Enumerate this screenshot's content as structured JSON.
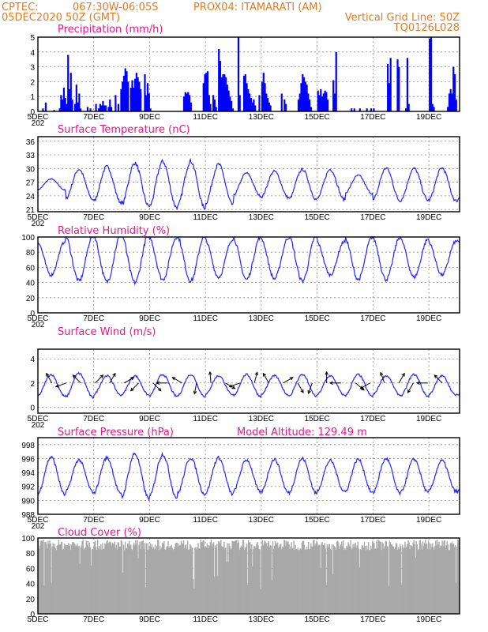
{
  "header": {
    "line1_left": "CPTEC:",
    "line1_coords": "067:30W-06:05S",
    "line1_station": "PROX04: ITAMARATI (AM)",
    "line2_left": "05DEC2020 50Z (GMT)",
    "line2_right": "Vertical Grid Line: 50Z",
    "line3_right": "TQ0126L028"
  },
  "x_axis": {
    "ticks": [
      "5DEC",
      "7DEC",
      "9DEC",
      "11DEC",
      "13DEC",
      "15DEC",
      "17DEC",
      "19DEC"
    ],
    "tick_days": [
      0,
      2,
      4,
      6,
      8,
      10,
      12,
      14
    ],
    "day_range": [
      0,
      15.1
    ],
    "year_fragment": "202"
  },
  "chart_data": [
    {
      "type": "bar",
      "title": "Precipitation (mm/h)",
      "ylim": [
        0,
        5
      ],
      "yticks": [
        0,
        1,
        2,
        3,
        4,
        5
      ],
      "color": "#0000ff",
      "events": [
        [
          0.15,
          0.2
        ],
        [
          0.25,
          0.6
        ],
        [
          0.55,
          0.1
        ],
        [
          0.75,
          0.2
        ],
        [
          0.8,
          1.1
        ],
        [
          0.85,
          0.8
        ],
        [
          0.9,
          1.6
        ],
        [
          0.95,
          0.9
        ],
        [
          1.0,
          0.5
        ],
        [
          1.05,
          3.8
        ],
        [
          1.1,
          1.5
        ],
        [
          1.15,
          2.6
        ],
        [
          1.2,
          0.8
        ],
        [
          1.3,
          0.5
        ],
        [
          1.35,
          1.8
        ],
        [
          1.4,
          0.6
        ],
        [
          1.45,
          1.2
        ],
        [
          1.5,
          0.2
        ],
        [
          1.75,
          0.3
        ],
        [
          1.85,
          0.2
        ],
        [
          2.05,
          0.5
        ],
        [
          2.15,
          0.2
        ],
        [
          2.2,
          0.5
        ],
        [
          2.25,
          0.4
        ],
        [
          2.3,
          0.7
        ],
        [
          2.35,
          0.4
        ],
        [
          2.4,
          0.4
        ],
        [
          2.5,
          0.3
        ],
        [
          2.55,
          0.8
        ],
        [
          2.6,
          0.3
        ],
        [
          2.75,
          1.1
        ],
        [
          2.85,
          0.5
        ],
        [
          2.95,
          1.5
        ],
        [
          3.0,
          2.0
        ],
        [
          3.05,
          2.4
        ],
        [
          3.1,
          2.9
        ],
        [
          3.15,
          2.7
        ],
        [
          3.2,
          2.0
        ],
        [
          3.3,
          1.6
        ],
        [
          3.35,
          2.1
        ],
        [
          3.4,
          1.6
        ],
        [
          3.45,
          2.2
        ],
        [
          3.5,
          2.6
        ],
        [
          3.55,
          2.3
        ],
        [
          3.6,
          2.0
        ],
        [
          3.65,
          1.5
        ],
        [
          3.8,
          2.5
        ],
        [
          3.85,
          1.1
        ],
        [
          3.9,
          1.9
        ],
        [
          3.95,
          1.2
        ],
        [
          4.0,
          0.2
        ],
        [
          5.2,
          1.0
        ],
        [
          5.25,
          1.3
        ],
        [
          5.3,
          1.2
        ],
        [
          5.35,
          1.3
        ],
        [
          5.4,
          1.1
        ],
        [
          5.45,
          0.6
        ],
        [
          5.9,
          1.9
        ],
        [
          5.95,
          2.5
        ],
        [
          6.0,
          2.6
        ],
        [
          6.05,
          2.7
        ],
        [
          6.1,
          1.1
        ],
        [
          6.15,
          0.5
        ],
        [
          6.25,
          1.1
        ],
        [
          6.3,
          0.8
        ],
        [
          6.35,
          0.3
        ],
        [
          6.45,
          4.2
        ],
        [
          6.5,
          3.4
        ],
        [
          6.55,
          2.3
        ],
        [
          6.6,
          2.5
        ],
        [
          6.65,
          2.5
        ],
        [
          6.7,
          2.3
        ],
        [
          6.75,
          1.8
        ],
        [
          6.8,
          1.4
        ],
        [
          6.85,
          1.0
        ],
        [
          6.9,
          0.7
        ],
        [
          6.95,
          0.2
        ],
        [
          7.15,
          5.0
        ],
        [
          7.2,
          1.1
        ],
        [
          7.35,
          2.4
        ],
        [
          7.4,
          2.5
        ],
        [
          7.45,
          1.9
        ],
        [
          7.5,
          1.5
        ],
        [
          7.55,
          1.2
        ],
        [
          7.6,
          0.9
        ],
        [
          7.65,
          0.6
        ],
        [
          7.7,
          0.8
        ],
        [
          7.75,
          0.4
        ],
        [
          7.9,
          1.1
        ],
        [
          8.0,
          2.0
        ],
        [
          8.05,
          2.6
        ],
        [
          8.1,
          1.9
        ],
        [
          8.15,
          1.2
        ],
        [
          8.2,
          0.9
        ],
        [
          8.25,
          0.6
        ],
        [
          8.3,
          0.4
        ],
        [
          8.7,
          1.2
        ],
        [
          8.8,
          0.8
        ],
        [
          8.85,
          0.5
        ],
        [
          9.3,
          0.8
        ],
        [
          9.35,
          1.2
        ],
        [
          9.4,
          1.9
        ],
        [
          9.45,
          2.5
        ],
        [
          9.5,
          2.3
        ],
        [
          9.55,
          2.0
        ],
        [
          9.6,
          1.8
        ],
        [
          9.65,
          1.2
        ],
        [
          9.7,
          0.8
        ],
        [
          9.75,
          0.3
        ],
        [
          10.0,
          1.4
        ],
        [
          10.05,
          1.1
        ],
        [
          10.1,
          1.5
        ],
        [
          10.15,
          1.0
        ],
        [
          10.2,
          1.2
        ],
        [
          10.25,
          1.4
        ],
        [
          10.3,
          1.3
        ],
        [
          10.35,
          0.8
        ],
        [
          10.55,
          2.1
        ],
        [
          10.6,
          1.2
        ],
        [
          10.65,
          4.0
        ],
        [
          11.2,
          0.2
        ],
        [
          11.3,
          0.2
        ],
        [
          11.5,
          0.2
        ],
        [
          11.75,
          0.2
        ],
        [
          11.9,
          0.2
        ],
        [
          12.0,
          0.2
        ],
        [
          12.5,
          3.2
        ],
        [
          12.55,
          1.9
        ],
        [
          12.6,
          3.6
        ],
        [
          12.85,
          3.5
        ],
        [
          12.9,
          3.0
        ],
        [
          13.15,
          0.2
        ],
        [
          13.2,
          3.6
        ],
        [
          13.25,
          0.5
        ],
        [
          14.0,
          4.9
        ],
        [
          14.05,
          5.0
        ],
        [
          14.1,
          0.5
        ],
        [
          14.15,
          0.3
        ],
        [
          14.65,
          0.3
        ],
        [
          14.7,
          1.2
        ],
        [
          14.75,
          1.5
        ],
        [
          14.8,
          1.2
        ],
        [
          14.85,
          3.0
        ],
        [
          14.9,
          2.5
        ],
        [
          14.95,
          0.8
        ]
      ]
    },
    {
      "type": "line",
      "title": "Surface Temperature (nC)",
      "ylim": [
        20.5,
        37
      ],
      "yticks": [
        21,
        24,
        27,
        30,
        33,
        36
      ],
      "color": "#2424ff",
      "base": 26.5,
      "amplitudes": [
        1.2,
        3.3,
        3.9,
        4.7,
        5.0,
        5.1,
        4.4,
        2.5,
        2.9,
        3.3,
        3.3,
        2.0,
        3.6,
        3.5,
        3.6,
        3.8
      ]
    },
    {
      "type": "line",
      "title": "Relative Humidity (%)",
      "ylim": [
        0,
        100
      ],
      "yticks": [
        0,
        20,
        40,
        60,
        80,
        100
      ],
      "color": "#2424ff",
      "base": 72,
      "amplitudes": [
        -22,
        -30,
        -31,
        -32,
        -28,
        -30,
        -25,
        -28,
        -27,
        -30,
        -22,
        -28,
        -28,
        -25,
        -22,
        -26
      ]
    },
    {
      "type": "line",
      "title": "Surface Wind (m/s)",
      "ylim": [
        -0.5,
        4.8
      ],
      "yticks": [
        0,
        2,
        4
      ],
      "color": "#2424ff",
      "base": 1.8,
      "amplitudes": [
        0.9,
        1.0,
        0.8,
        0.8,
        0.9,
        0.9,
        0.8,
        0.9,
        0.8,
        0.9,
        0.8,
        0.9,
        0.8,
        0.9,
        0.8,
        0.9
      ],
      "vector_directions_deg": [
        120,
        200,
        135,
        45,
        60,
        30,
        225,
        315,
        180,
        150,
        260,
        95,
        330,
        200,
        75,
        120,
        30,
        300,
        250,
        90,
        180,
        320,
        210,
        110,
        60,
        240,
        180,
        135
      ]
    },
    {
      "type": "line",
      "title": "Surface Pressure (hPa)",
      "annotation": "Model Altitude: 129.49  m",
      "ylim": [
        988,
        999
      ],
      "yticks": [
        988,
        990,
        992,
        994,
        996,
        998
      ],
      "color": "#2424ff",
      "base": 993.5,
      "amplitudes": [
        2.7,
        2.3,
        2.6,
        3.2,
        3.1,
        2.6,
        2.6,
        2.3,
        2.4,
        2.5,
        2.2,
        2.4,
        2.5,
        2.4,
        2.2,
        2.6
      ]
    },
    {
      "type": "area",
      "title": "Cloud Cover (%)",
      "ylim": [
        0,
        100
      ],
      "yticks": [
        0,
        20,
        40,
        60,
        80,
        100
      ],
      "color": "#a9a9a9",
      "base": 91
    }
  ]
}
